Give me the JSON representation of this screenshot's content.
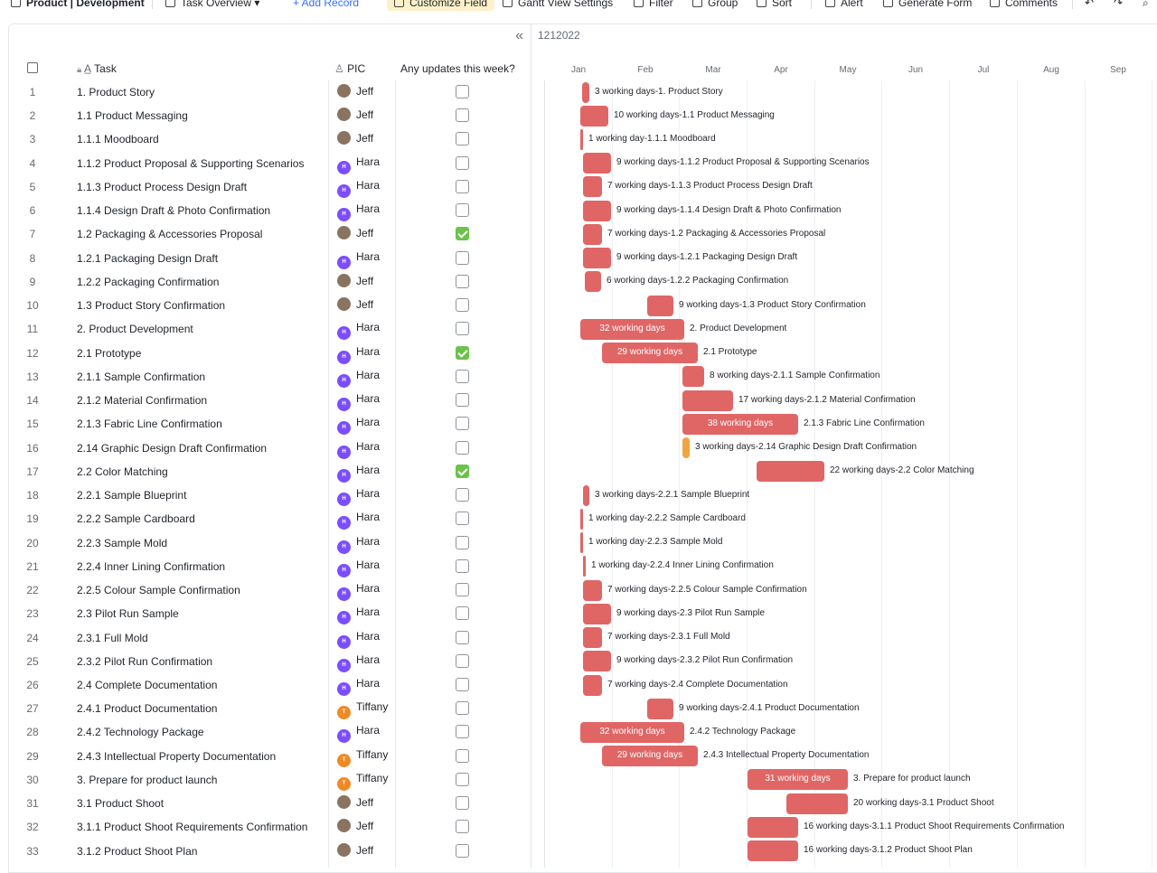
{
  "toolbar": {
    "title": "Product | Development",
    "view": "Task Overview",
    "add_record": "+ Add Record",
    "customize_field": "Customize Field",
    "gantt_settings": "Gantt View Settings",
    "filter": "Filter",
    "group": "Group",
    "sort": "Sort",
    "alert": "Alert",
    "generate_form": "Generate Form",
    "comments": "Comments"
  },
  "grid": {
    "columns": {
      "task": "Task",
      "pic": "PIC",
      "updates": "Any updates this week?"
    }
  },
  "gantt": {
    "date_label": "1212022",
    "months": [
      "Jan",
      "Feb",
      "Mar",
      "Apr",
      "May",
      "Jun",
      "Jul",
      "Aug",
      "Sep"
    ]
  },
  "colors": {
    "bar": "#e06666",
    "bar_warning": "#f0a63d",
    "check_on": "#6cc24a",
    "avatar_hara": "#7b4dff",
    "avatar_tiffany": "#f08a24"
  },
  "people": {
    "Jeff": {
      "initial": "",
      "color": "#8a7360"
    },
    "Hara": {
      "initial": "H",
      "color": "#7b4dff"
    },
    "Tiffany": {
      "initial": "T",
      "color": "#f08a24"
    }
  },
  "rows": [
    {
      "num": "1",
      "task": "1. Product Story",
      "pic": "Jeff",
      "updated": false,
      "bar": {
        "label": "3 working days-1. Product Story",
        "inside": ""
      }
    },
    {
      "num": "2",
      "task": "1.1 Product Messaging",
      "pic": "Jeff",
      "updated": false,
      "bar": {
        "label": "10 working days-1.1 Product Messaging",
        "inside": ""
      }
    },
    {
      "num": "3",
      "task": "1.1.1 Moodboard",
      "pic": "Jeff",
      "updated": false,
      "bar": {
        "label": "1 working day-1.1.1 Moodboard",
        "inside": ""
      }
    },
    {
      "num": "4",
      "task": "1.1.2 Product Proposal & Supporting Scenarios",
      "pic": "Hara",
      "updated": false,
      "bar": {
        "label": "9 working days-1.1.2 Product Proposal & Supporting Scenarios",
        "inside": ""
      }
    },
    {
      "num": "5",
      "task": "1.1.3 Product Process Design Draft",
      "pic": "Hara",
      "updated": false,
      "bar": {
        "label": "7 working days-1.1.3 Product Process Design Draft",
        "inside": ""
      }
    },
    {
      "num": "6",
      "task": "1.1.4 Design Draft & Photo Confirmation",
      "pic": "Hara",
      "updated": false,
      "bar": {
        "label": "9 working days-1.1.4 Design Draft & Photo Confirmation",
        "inside": ""
      }
    },
    {
      "num": "7",
      "task": "1.2 Packaging & Accessories Proposal",
      "pic": "Jeff",
      "updated": true,
      "bar": {
        "label": "7 working days-1.2 Packaging & Accessories Proposal",
        "inside": ""
      }
    },
    {
      "num": "8",
      "task": "1.2.1 Packaging Design Draft",
      "pic": "Hara",
      "updated": false,
      "bar": {
        "label": "9 working days-1.2.1 Packaging Design Draft",
        "inside": ""
      }
    },
    {
      "num": "9",
      "task": "1.2.2 Packaging Confirmation",
      "pic": "Jeff",
      "updated": false,
      "bar": {
        "label": "6 working days-1.2.2 Packaging Confirmation",
        "inside": ""
      }
    },
    {
      "num": "10",
      "task": "1.3 Product Story Confirmation",
      "pic": "Jeff",
      "updated": false,
      "bar": {
        "label": "9 working days-1.3 Product Story Confirmation",
        "inside": ""
      }
    },
    {
      "num": "11",
      "task": "2. Product Development",
      "pic": "Hara",
      "updated": false,
      "bar": {
        "label": "2. Product Development",
        "inside": "32 working days"
      }
    },
    {
      "num": "12",
      "task": "2.1 Prototype",
      "pic": "Hara",
      "updated": true,
      "bar": {
        "label": "2.1 Prototype",
        "inside": "29 working days"
      }
    },
    {
      "num": "13",
      "task": "2.1.1 Sample Confirmation",
      "pic": "Hara",
      "updated": false,
      "bar": {
        "label": "8 working days-2.1.1 Sample Confirmation",
        "inside": ""
      }
    },
    {
      "num": "14",
      "task": "2.1.2 Material Confirmation",
      "pic": "Hara",
      "updated": false,
      "bar": {
        "label": "17 working days-2.1.2 Material Confirmation",
        "inside": ""
      }
    },
    {
      "num": "15",
      "task": "2.1.3 Fabric Line Confirmation",
      "pic": "Hara",
      "updated": false,
      "bar": {
        "label": "2.1.3 Fabric Line Confirmation",
        "inside": "38 working days"
      }
    },
    {
      "num": "16",
      "task": "2.14 Graphic Design Draft Confirmation",
      "pic": "Hara",
      "updated": false,
      "bar": {
        "label": "3 working days-2.14 Graphic Design Draft Confirmation",
        "inside": "",
        "warn": true
      }
    },
    {
      "num": "17",
      "task": "2.2 Color Matching",
      "pic": "Hara",
      "updated": true,
      "bar": {
        "label": "22 working days-2.2 Color Matching",
        "inside": ""
      }
    },
    {
      "num": "18",
      "task": "2.2.1 Sample Blueprint",
      "pic": "Hara",
      "updated": false,
      "bar": {
        "label": "3 working days-2.2.1 Sample Blueprint",
        "inside": ""
      }
    },
    {
      "num": "19",
      "task": "2.2.2 Sample Cardboard",
      "pic": "Hara",
      "updated": false,
      "bar": {
        "label": "1 working day-2.2.2 Sample Cardboard",
        "inside": ""
      }
    },
    {
      "num": "20",
      "task": "2.2.3 Sample Mold",
      "pic": "Hara",
      "updated": false,
      "bar": {
        "label": "1 working day-2.2.3 Sample Mold",
        "inside": ""
      }
    },
    {
      "num": "21",
      "task": "2.2.4 Inner Lining Confirmation",
      "pic": "Hara",
      "updated": false,
      "bar": {
        "label": "1 working day-2.2.4 Inner Lining Confirmation",
        "inside": ""
      }
    },
    {
      "num": "22",
      "task": "2.2.5 Colour Sample Confirmation",
      "pic": "Hara",
      "updated": false,
      "bar": {
        "label": "7 working days-2.2.5 Colour Sample Confirmation",
        "inside": ""
      }
    },
    {
      "num": "23",
      "task": "2.3 Pilot Run Sample",
      "pic": "Hara",
      "updated": false,
      "bar": {
        "label": "9 working days-2.3 Pilot Run Sample",
        "inside": ""
      }
    },
    {
      "num": "24",
      "task": "2.3.1 Full Mold",
      "pic": "Hara",
      "updated": false,
      "bar": {
        "label": "7 working days-2.3.1 Full Mold",
        "inside": ""
      }
    },
    {
      "num": "25",
      "task": "2.3.2 Pilot Run Confirmation",
      "pic": "Hara",
      "updated": false,
      "bar": {
        "label": "9 working days-2.3.2 Pilot Run Confirmation",
        "inside": ""
      }
    },
    {
      "num": "26",
      "task": "2.4 Complete Documentation",
      "pic": "Hara",
      "updated": false,
      "bar": {
        "label": "7 working days-2.4 Complete Documentation",
        "inside": ""
      }
    },
    {
      "num": "27",
      "task": "2.4.1 Product Documentation",
      "pic": "Tiffany",
      "updated": false,
      "bar": {
        "label": "9 working days-2.4.1 Product Documentation",
        "inside": ""
      }
    },
    {
      "num": "28",
      "task": "2.4.2 Technology Package",
      "pic": "Hara",
      "updated": false,
      "bar": {
        "label": "2.4.2 Technology Package",
        "inside": "32 working days"
      }
    },
    {
      "num": "29",
      "task": "2.4.3 Intellectual Property Documentation",
      "pic": "Tiffany",
      "updated": false,
      "bar": {
        "label": "2.4.3 Intellectual Property Documentation",
        "inside": "29 working days"
      }
    },
    {
      "num": "30",
      "task": "3. Prepare for product launch",
      "pic": "Tiffany",
      "updated": false,
      "bar": {
        "label": "3. Prepare for product launch",
        "inside": "31 working days"
      }
    },
    {
      "num": "31",
      "task": "3.1 Product Shoot",
      "pic": "Jeff",
      "updated": false,
      "bar": {
        "label": "20 working days-3.1 Product Shoot",
        "inside": ""
      }
    },
    {
      "num": "32",
      "task": "3.1.1 Product Shoot Requirements Confirmation",
      "pic": "Jeff",
      "updated": false,
      "bar": {
        "label": "16 working days-3.1.1 Product Shoot Requirements Confirmation",
        "inside": ""
      }
    },
    {
      "num": "33",
      "task": "3.1.2 Product Shoot Plan",
      "pic": "Jeff",
      "updated": false,
      "bar": {
        "label": "16 working days-3.1.2 Product Shoot Plan",
        "inside": ""
      }
    }
  ]
}
